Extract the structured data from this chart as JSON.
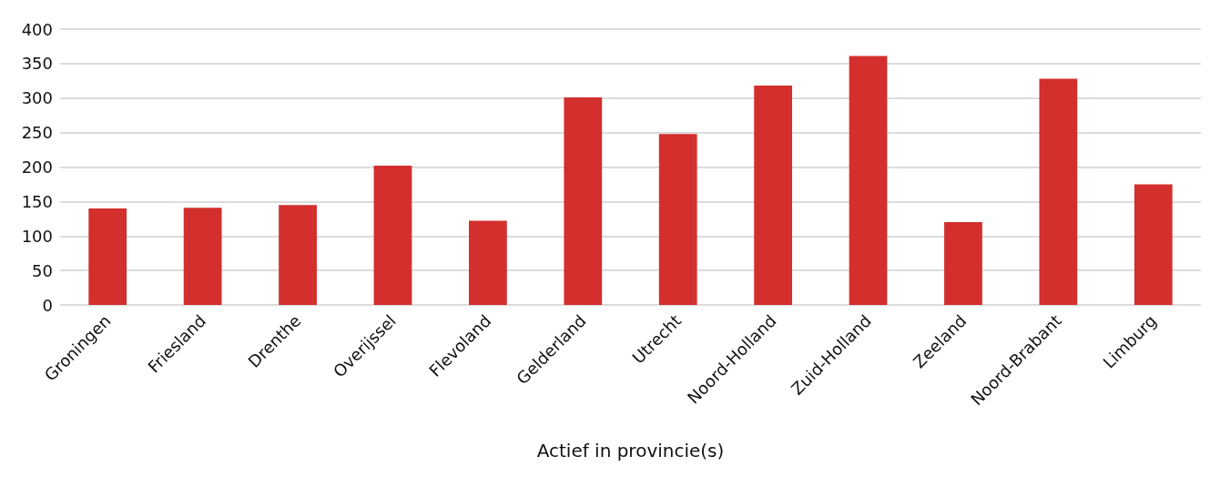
{
  "chart_data": {
    "type": "bar",
    "xlabel": "Actief in provincie(s)",
    "categories": [
      "Groningen",
      "Friesland",
      "Drenthe",
      "Overijssel",
      "Flevoland",
      "Gelderland",
      "Utrecht",
      "Noord-Holland",
      "Zuid-Holland",
      "Zeeland",
      "Noord-Brabant",
      "Limburg"
    ],
    "values": [
      140,
      141,
      145,
      202,
      122,
      301,
      248,
      318,
      361,
      120,
      328,
      175
    ],
    "color": "#d32f2d",
    "ylim": [
      0,
      400
    ],
    "yticks": [
      0,
      50,
      100,
      150,
      200,
      250,
      300,
      350,
      400
    ],
    "grid": "y"
  }
}
